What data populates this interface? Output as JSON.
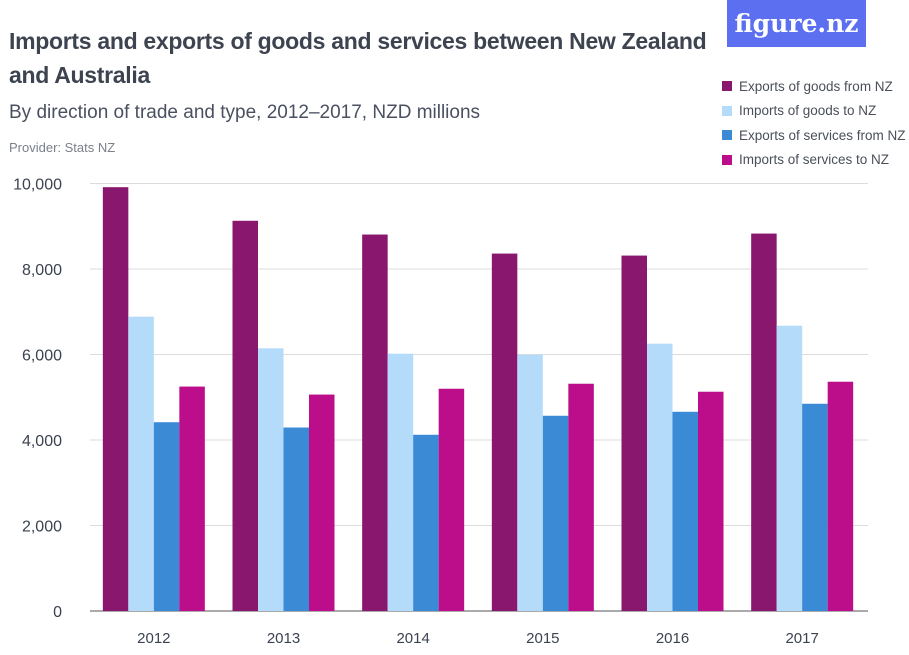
{
  "logo": "figure.nz",
  "chart_data": {
    "type": "bar",
    "title": "Imports and exports of goods and services between New Zealand and Australia",
    "subtitle": "By direction of trade and type, 2012–2017, NZD millions",
    "provider": "Provider: Stats NZ",
    "categories": [
      "2012",
      "2013",
      "2014",
      "2015",
      "2016",
      "2017"
    ],
    "series": [
      {
        "name": "Exports of goods from NZ",
        "color": "#8a176e",
        "values": [
          9914,
          9128,
          8806,
          8361,
          8314,
          8829
        ]
      },
      {
        "name": "Imports of goods to NZ",
        "color": "#b4dbfa",
        "values": [
          6885,
          6145,
          6019,
          5995,
          6253,
          6674
        ]
      },
      {
        "name": "Exports of services from NZ",
        "color": "#3a8ad6",
        "values": [
          4416,
          4292,
          4122,
          4567,
          4660,
          4848
        ]
      },
      {
        "name": "Imports of services to NZ",
        "color": "#bc0d8a",
        "values": [
          5250,
          5063,
          5199,
          5316,
          5129,
          5363
        ]
      }
    ],
    "yticks": [
      0,
      2000,
      4000,
      6000,
      8000,
      10000
    ],
    "ytick_labels": [
      "0",
      "2,000",
      "4,000",
      "6,000",
      "8,000",
      "10,000"
    ],
    "ylim": [
      0,
      10000
    ],
    "xlabel": "",
    "ylabel": "",
    "grid": true,
    "legend": "top-right"
  }
}
